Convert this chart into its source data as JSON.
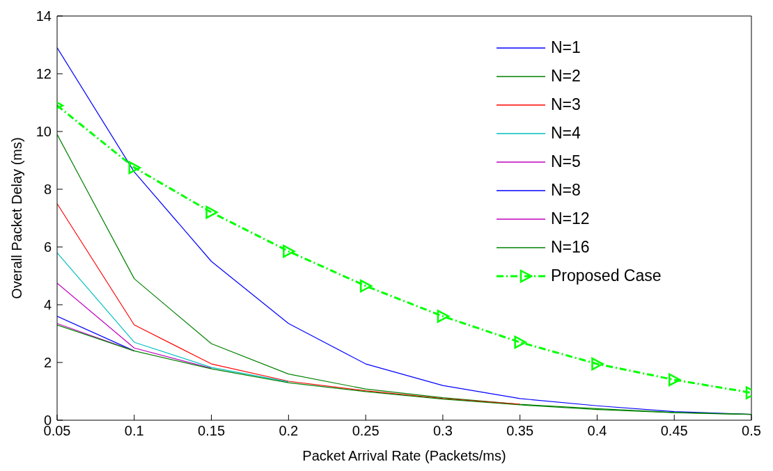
{
  "chart_data": {
    "type": "line",
    "xlabel": "Packet Arrival Rate (Packets/ms)",
    "ylabel": "Overall Packet Delay (ms)",
    "x": [
      0.05,
      0.1,
      0.15,
      0.2,
      0.25,
      0.3,
      0.35,
      0.4,
      0.45,
      0.5
    ],
    "xlim": [
      0.05,
      0.5
    ],
    "xticks": [
      {
        "value": 0.05,
        "label": "0.05"
      },
      {
        "value": 0.1,
        "label": "0.1"
      },
      {
        "value": 0.15,
        "label": "0.15"
      },
      {
        "value": 0.2,
        "label": "0.2"
      },
      {
        "value": 0.25,
        "label": "0.25"
      },
      {
        "value": 0.3,
        "label": "0.3"
      },
      {
        "value": 0.35,
        "label": "0.35"
      },
      {
        "value": 0.4,
        "label": "0.4"
      },
      {
        "value": 0.45,
        "label": "0.45"
      },
      {
        "value": 0.5,
        "label": "0.5"
      }
    ],
    "ylim": [
      0,
      14
    ],
    "yticks": [
      0,
      2,
      4,
      6,
      8,
      10,
      12,
      14
    ],
    "grid": false,
    "legend": "top right",
    "marker": "none",
    "line_style": "solid",
    "series": [
      {
        "name": "N=1",
        "color": "#0000ff",
        "values": [
          12.9,
          8.6,
          5.5,
          3.35,
          1.95,
          1.2,
          0.75,
          0.5,
          0.3,
          0.2
        ]
      },
      {
        "name": "N=2",
        "color": "#008000",
        "values": [
          9.9,
          4.9,
          2.65,
          1.6,
          1.08,
          0.78,
          0.55,
          0.4,
          0.27,
          0.2
        ]
      },
      {
        "name": "N=3",
        "color": "#ff0000",
        "values": [
          7.5,
          3.3,
          1.95,
          1.35,
          1.02,
          0.75,
          0.55,
          null,
          null,
          null
        ]
      },
      {
        "name": "N=4",
        "color": "#00bfbf",
        "values": [
          5.8,
          2.7,
          1.83,
          1.33,
          null,
          null,
          null,
          null,
          null,
          null
        ]
      },
      {
        "name": "N=5",
        "color": "#bf00bf",
        "values": [
          4.75,
          2.5,
          1.8,
          null,
          null,
          null,
          null,
          null,
          null,
          null
        ]
      },
      {
        "name": "N=8",
        "color": "#0000ff",
        "values": [
          3.6,
          2.4,
          null,
          null,
          null,
          null,
          null,
          null,
          null,
          null
        ]
      },
      {
        "name": "N=12",
        "color": "#bf00bf",
        "values": [
          3.35,
          2.4,
          null,
          null,
          null,
          null,
          null,
          null,
          null,
          null
        ]
      },
      {
        "name": "N=16",
        "color": "#008000",
        "values": [
          3.3,
          2.4,
          1.78,
          1.3,
          0.99,
          0.73,
          0.53,
          0.37,
          0.26,
          0.2
        ]
      },
      {
        "name": "Proposed Case",
        "color": "#00ff00",
        "marker": "triangle",
        "line_style": "dashed",
        "values": [
          10.9,
          8.75,
          7.2,
          5.85,
          4.65,
          3.6,
          2.7,
          1.95,
          1.4,
          0.95
        ]
      }
    ]
  }
}
